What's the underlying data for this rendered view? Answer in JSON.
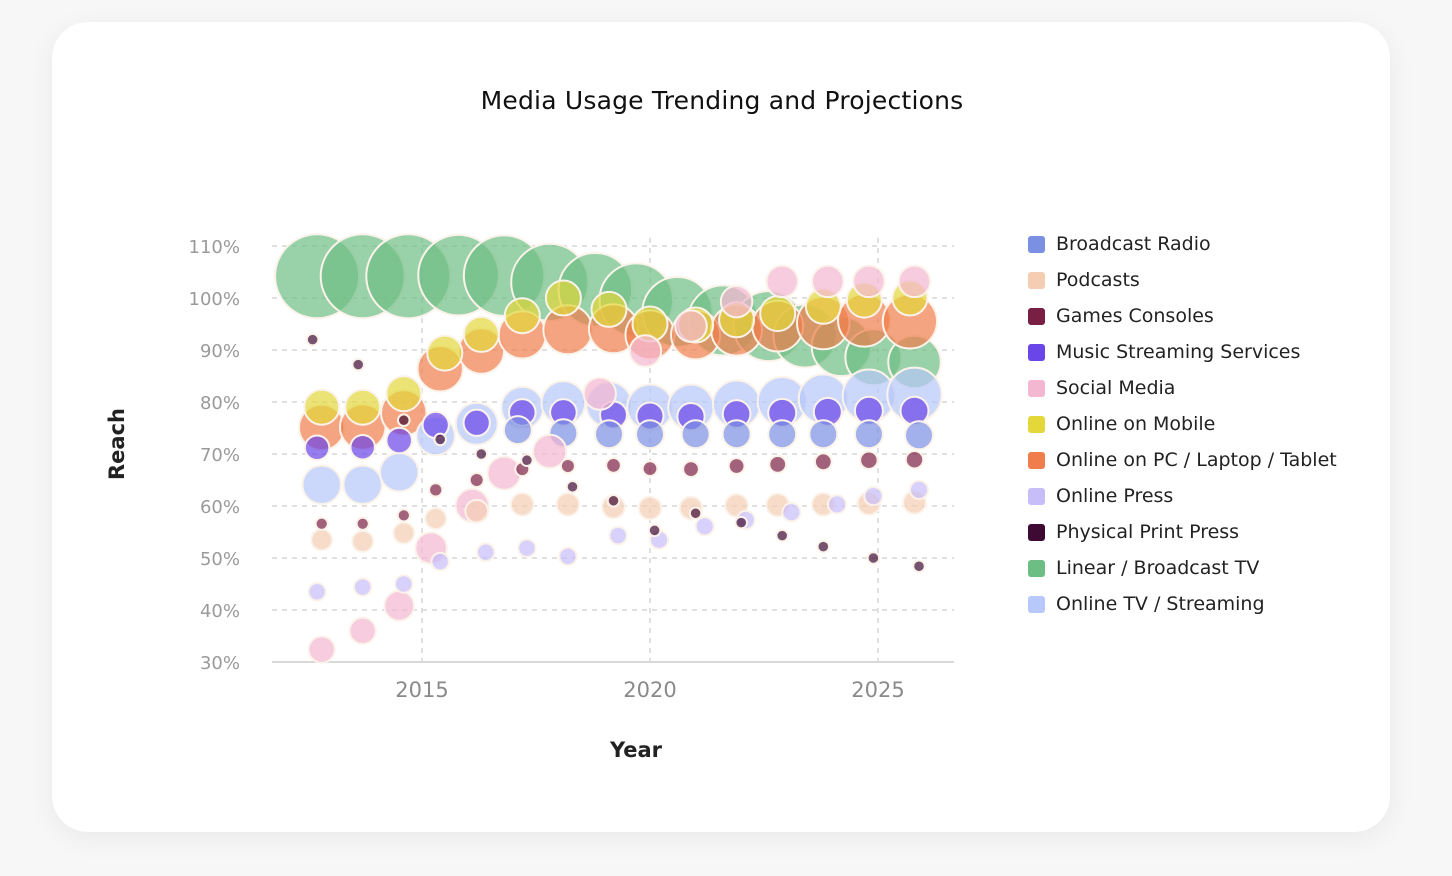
{
  "chart_data": {
    "type": "scatter",
    "subtype": "bubble",
    "title": "Media Usage Trending and Projections",
    "xlabel": "Year",
    "ylabel": "Reach",
    "xlim": [
      2012.0,
      2026.7
    ],
    "ylim": [
      30,
      110
    ],
    "xticks": [
      2015,
      2020,
      2025
    ],
    "xtick_labels": [
      "2015",
      "2020",
      "2025"
    ],
    "yticks": [
      30,
      40,
      50,
      60,
      70,
      80,
      90,
      100,
      110
    ],
    "ytick_labels": [
      "30%",
      "40%",
      "50%",
      "60%",
      "70%",
      "80%",
      "90%",
      "100%",
      "110%"
    ],
    "grid": true,
    "legend_position": "right",
    "series": [
      {
        "name": "Broadcast Radio",
        "color": "#7b8fe3",
        "points": [
          [
            2017.1,
            74.6,
            8
          ],
          [
            2018.1,
            74,
            8
          ],
          [
            2019.1,
            73.8,
            8
          ],
          [
            2020.0,
            73.8,
            8
          ],
          [
            2021.0,
            73.8,
            8
          ],
          [
            2021.9,
            73.8,
            8
          ],
          [
            2022.9,
            73.8,
            8
          ],
          [
            2023.8,
            73.8,
            8
          ],
          [
            2024.8,
            73.8,
            8
          ],
          [
            2025.9,
            73.6,
            8
          ]
        ]
      },
      {
        "name": "Podcasts",
        "color": "#f5cdb3",
        "points": [
          [
            2012.8,
            53.5,
            6
          ],
          [
            2013.7,
            53.2,
            6
          ],
          [
            2014.6,
            54.8,
            6
          ],
          [
            2015.3,
            57.6,
            6
          ],
          [
            2016.2,
            59,
            6.5
          ],
          [
            2017.2,
            60.3,
            6.5
          ],
          [
            2018.2,
            60.3,
            6.5
          ],
          [
            2019.2,
            59.8,
            6.5
          ],
          [
            2020.0,
            59.6,
            6.5
          ],
          [
            2020.9,
            59.6,
            6.5
          ],
          [
            2021.9,
            60.1,
            6.5
          ],
          [
            2022.8,
            60.2,
            6.5
          ],
          [
            2023.8,
            60.3,
            6.5
          ],
          [
            2024.8,
            60.5,
            6.5
          ],
          [
            2025.8,
            60.7,
            6.5
          ]
        ]
      },
      {
        "name": "Games Consoles",
        "color": "#7a1f44",
        "points": [
          [
            2012.8,
            56.6,
            3.5
          ],
          [
            2013.7,
            56.6,
            3.5
          ],
          [
            2014.6,
            58.2,
            3.5
          ],
          [
            2015.3,
            63.1,
            3.8
          ],
          [
            2016.2,
            65,
            4
          ],
          [
            2017.2,
            67.1,
            4
          ],
          [
            2018.2,
            67.7,
            4
          ],
          [
            2019.2,
            67.8,
            4.2
          ],
          [
            2020.0,
            67.2,
            4.2
          ],
          [
            2020.9,
            67.1,
            4.5
          ],
          [
            2021.9,
            67.7,
            4.5
          ],
          [
            2022.8,
            68,
            4.8
          ],
          [
            2023.8,
            68.5,
            4.8
          ],
          [
            2024.8,
            68.8,
            5
          ],
          [
            2025.8,
            68.9,
            5
          ]
        ]
      },
      {
        "name": "Music Streaming Services",
        "color": "#6a45e8",
        "points": [
          [
            2012.7,
            71.2,
            7
          ],
          [
            2013.7,
            71.3,
            7
          ],
          [
            2014.5,
            72.6,
            7.3
          ],
          [
            2015.3,
            75.6,
            7.5
          ],
          [
            2016.2,
            76,
            7.5
          ],
          [
            2017.2,
            78,
            7.6
          ],
          [
            2018.1,
            78,
            7.6
          ],
          [
            2019.2,
            77.5,
            7.7
          ],
          [
            2020.0,
            77.3,
            7.7
          ],
          [
            2020.9,
            77.2,
            7.8
          ],
          [
            2021.9,
            77.7,
            7.9
          ],
          [
            2022.9,
            77.9,
            8
          ],
          [
            2023.9,
            78.1,
            8
          ],
          [
            2024.8,
            78.3,
            8
          ],
          [
            2025.8,
            78.3,
            8
          ]
        ]
      },
      {
        "name": "Social Media",
        "color": "#f4b7d2",
        "points": [
          [
            2012.8,
            32.4,
            7.5
          ],
          [
            2013.7,
            36,
            7.5
          ],
          [
            2014.5,
            40.8,
            8.5
          ],
          [
            2015.2,
            51.9,
            9
          ],
          [
            2016.1,
            60.1,
            9.5
          ],
          [
            2016.8,
            66.3,
            9.5
          ],
          [
            2017.8,
            70.5,
            9.5
          ],
          [
            2018.9,
            81.6,
            9.2
          ],
          [
            2019.9,
            89.8,
            9
          ],
          [
            2020.9,
            94.6,
            9
          ],
          [
            2021.9,
            99.3,
            9
          ],
          [
            2022.9,
            103.2,
            9
          ],
          [
            2023.9,
            103.2,
            9
          ],
          [
            2024.8,
            103.2,
            9
          ],
          [
            2025.8,
            103.2,
            9
          ]
        ]
      },
      {
        "name": "Online on Mobile",
        "color": "#e3d73a",
        "points": [
          [
            2012.8,
            79,
            10
          ],
          [
            2013.7,
            79,
            10
          ],
          [
            2014.6,
            81.6,
            10
          ],
          [
            2015.5,
            89.4,
            10
          ],
          [
            2016.3,
            93,
            10
          ],
          [
            2017.2,
            96.6,
            10
          ],
          [
            2018.1,
            100,
            10
          ],
          [
            2019.1,
            97.8,
            10
          ],
          [
            2020.0,
            95,
            10
          ],
          [
            2021.0,
            94.8,
            10
          ],
          [
            2021.9,
            95.8,
            10
          ],
          [
            2022.8,
            97,
            10
          ],
          [
            2023.8,
            98.4,
            10
          ],
          [
            2024.7,
            99.6,
            10
          ],
          [
            2025.7,
            100,
            10
          ]
        ]
      },
      {
        "name": "Online on PC / Laptop / Tablet",
        "color": "#f07d4c",
        "points": [
          [
            2012.8,
            75.1,
            13
          ],
          [
            2013.7,
            75.2,
            13
          ],
          [
            2014.6,
            77.9,
            13
          ],
          [
            2015.4,
            86.4,
            13
          ],
          [
            2016.3,
            89.8,
            13
          ],
          [
            2017.2,
            92.9,
            13.5
          ],
          [
            2018.2,
            93.9,
            14
          ],
          [
            2019.2,
            94.1,
            14
          ],
          [
            2020.0,
            92.9,
            14
          ],
          [
            2021.0,
            92.9,
            14
          ],
          [
            2021.9,
            93.8,
            14.5
          ],
          [
            2022.8,
            94.6,
            14.5
          ],
          [
            2023.8,
            95.2,
            15
          ],
          [
            2024.7,
            95.7,
            15
          ],
          [
            2025.7,
            95.5,
            15.5
          ]
        ]
      },
      {
        "name": "Online Press",
        "color": "#c7bdf9",
        "points": [
          [
            2012.7,
            43.5,
            5
          ],
          [
            2013.7,
            44.4,
            5
          ],
          [
            2014.6,
            45,
            5
          ],
          [
            2015.4,
            49.3,
            5
          ],
          [
            2016.4,
            51.1,
            5
          ],
          [
            2017.3,
            51.9,
            5
          ],
          [
            2018.2,
            50.3,
            5
          ],
          [
            2019.3,
            54.3,
            5
          ],
          [
            2020.2,
            53.5,
            5.2
          ],
          [
            2021.2,
            56.1,
            5.2
          ],
          [
            2022.1,
            57.3,
            5.2
          ],
          [
            2023.1,
            58.8,
            5.2
          ],
          [
            2024.1,
            60.3,
            5.2
          ],
          [
            2024.9,
            61.9,
            5.2
          ],
          [
            2025.9,
            63.1,
            5.2
          ]
        ]
      },
      {
        "name": "Physical Print Press",
        "color": "#3e0a33",
        "points": [
          [
            2012.6,
            92,
            3.3
          ],
          [
            2013.6,
            87.2,
            3.3
          ],
          [
            2014.6,
            76.5,
            3.3
          ],
          [
            2015.4,
            72.8,
            3.3
          ],
          [
            2016.3,
            70,
            3.3
          ],
          [
            2017.3,
            68.8,
            3.3
          ],
          [
            2018.3,
            63.7,
            3.3
          ],
          [
            2019.2,
            61,
            3.3
          ],
          [
            2020.1,
            55.3,
            3.3
          ],
          [
            2021.0,
            58.6,
            3.3
          ],
          [
            2022.0,
            56.8,
            3.3
          ],
          [
            2022.9,
            54.3,
            3.3
          ],
          [
            2023.8,
            52.2,
            3.3
          ],
          [
            2024.9,
            50,
            3.3
          ],
          [
            2025.9,
            48.4,
            3.3
          ]
        ]
      },
      {
        "name": "Linear / Broadcast TV",
        "color": "#6dbe84",
        "points": [
          [
            2012.7,
            104.2,
            24
          ],
          [
            2013.7,
            104.2,
            24
          ],
          [
            2014.7,
            104.2,
            24
          ],
          [
            2015.8,
            104.4,
            23
          ],
          [
            2016.8,
            104.3,
            23
          ],
          [
            2017.8,
            103,
            22
          ],
          [
            2018.8,
            101.6,
            21
          ],
          [
            2019.7,
            99.6,
            21
          ],
          [
            2020.6,
            97.3,
            20
          ],
          [
            2021.6,
            95.7,
            20
          ],
          [
            2022.6,
            94.6,
            20
          ],
          [
            2023.4,
            92.7,
            18
          ],
          [
            2024.2,
            90.7,
            17
          ],
          [
            2024.9,
            88.6,
            16
          ],
          [
            2025.8,
            87.7,
            15
          ]
        ]
      },
      {
        "name": "Online TV / Streaming",
        "color": "#b7c8fa",
        "points": [
          [
            2012.8,
            64.1,
            11
          ],
          [
            2013.7,
            64.1,
            11
          ],
          [
            2014.5,
            66.5,
            11
          ],
          [
            2015.3,
            73.5,
            11
          ],
          [
            2016.2,
            75.8,
            12
          ],
          [
            2017.2,
            78.9,
            12
          ],
          [
            2018.1,
            79.8,
            12.5
          ],
          [
            2019.1,
            79.5,
            13
          ],
          [
            2020.0,
            79,
            13
          ],
          [
            2020.9,
            79,
            13
          ],
          [
            2021.9,
            79.6,
            13.5
          ],
          [
            2022.9,
            80.1,
            14
          ],
          [
            2023.8,
            80.6,
            14
          ],
          [
            2024.8,
            81.2,
            15
          ],
          [
            2025.8,
            81.4,
            15.5
          ]
        ]
      }
    ]
  }
}
